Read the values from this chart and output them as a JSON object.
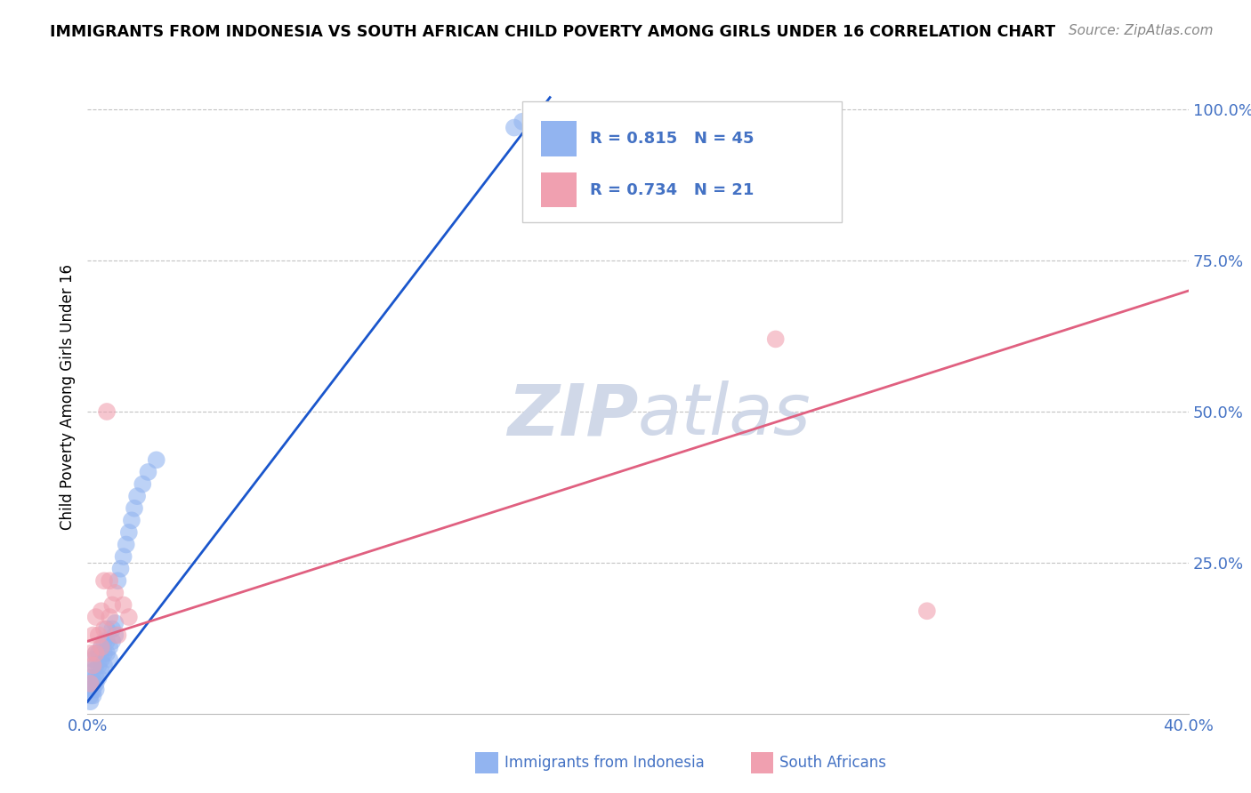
{
  "title": "IMMIGRANTS FROM INDONESIA VS SOUTH AFRICAN CHILD POVERTY AMONG GIRLS UNDER 16 CORRELATION CHART",
  "source": "Source: ZipAtlas.com",
  "xlabel_blue": "Immigrants from Indonesia",
  "xlabel_pink": "South Africans",
  "ylabel": "Child Poverty Among Girls Under 16",
  "xlim": [
    0.0,
    0.4
  ],
  "ylim": [
    0.0,
    1.05
  ],
  "x_ticks": [
    0.0,
    0.1,
    0.2,
    0.3,
    0.4
  ],
  "x_tick_labels": [
    "0.0%",
    "",
    "",
    "",
    "40.0%"
  ],
  "y_tick_labels": [
    "",
    "25.0%",
    "50.0%",
    "75.0%",
    "100.0%"
  ],
  "y_ticks": [
    0.0,
    0.25,
    0.5,
    0.75,
    1.0
  ],
  "blue_R": 0.815,
  "blue_N": 45,
  "pink_R": 0.734,
  "pink_N": 21,
  "blue_color": "#92b4f0",
  "pink_color": "#f0a0b0",
  "trendline_blue": "#1a56cc",
  "trendline_pink": "#e06080",
  "watermark_color": "#d0d8e8",
  "blue_trend_x": [
    0.0,
    0.168
  ],
  "blue_trend_y": [
    0.02,
    1.02
  ],
  "pink_trend_x": [
    0.0,
    0.4
  ],
  "pink_trend_y": [
    0.12,
    0.7
  ],
  "blue_x": [
    0.001,
    0.001,
    0.001,
    0.001,
    0.002,
    0.002,
    0.002,
    0.002,
    0.002,
    0.003,
    0.003,
    0.003,
    0.003,
    0.003,
    0.004,
    0.004,
    0.004,
    0.005,
    0.005,
    0.005,
    0.006,
    0.006,
    0.006,
    0.007,
    0.007,
    0.007,
    0.008,
    0.008,
    0.009,
    0.009,
    0.01,
    0.01,
    0.011,
    0.012,
    0.013,
    0.014,
    0.015,
    0.016,
    0.017,
    0.018,
    0.02,
    0.022,
    0.025,
    0.155,
    0.158
  ],
  "blue_y": [
    0.02,
    0.03,
    0.04,
    0.06,
    0.03,
    0.04,
    0.05,
    0.07,
    0.09,
    0.04,
    0.05,
    0.06,
    0.08,
    0.1,
    0.06,
    0.08,
    0.1,
    0.07,
    0.09,
    0.11,
    0.08,
    0.1,
    0.12,
    0.1,
    0.12,
    0.14,
    0.09,
    0.11,
    0.12,
    0.14,
    0.13,
    0.15,
    0.22,
    0.24,
    0.26,
    0.28,
    0.3,
    0.32,
    0.34,
    0.36,
    0.38,
    0.4,
    0.42,
    0.97,
    0.98
  ],
  "pink_x": [
    0.001,
    0.001,
    0.002,
    0.002,
    0.003,
    0.003,
    0.004,
    0.005,
    0.005,
    0.006,
    0.006,
    0.007,
    0.008,
    0.008,
    0.009,
    0.01,
    0.011,
    0.013,
    0.015,
    0.25,
    0.305
  ],
  "pink_y": [
    0.05,
    0.1,
    0.08,
    0.13,
    0.1,
    0.16,
    0.13,
    0.11,
    0.17,
    0.14,
    0.22,
    0.5,
    0.16,
    0.22,
    0.18,
    0.2,
    0.13,
    0.18,
    0.16,
    0.62,
    0.17
  ]
}
